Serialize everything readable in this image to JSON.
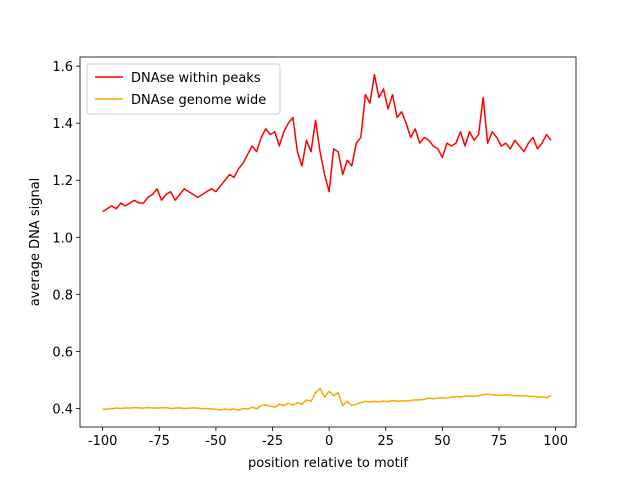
{
  "chart_data": {
    "type": "line",
    "xlabel": "position relative to motif",
    "ylabel": "average DNA signal",
    "x": [
      -100,
      -98,
      -96,
      -94,
      -92,
      -90,
      -88,
      -86,
      -84,
      -82,
      -80,
      -78,
      -76,
      -74,
      -72,
      -70,
      -68,
      -66,
      -64,
      -62,
      -60,
      -58,
      -56,
      -54,
      -52,
      -50,
      -48,
      -46,
      -44,
      -42,
      -40,
      -38,
      -36,
      -34,
      -32,
      -30,
      -28,
      -26,
      -24,
      -22,
      -20,
      -18,
      -16,
      -14,
      -12,
      -10,
      -8,
      -6,
      -4,
      -2,
      0,
      2,
      4,
      6,
      8,
      10,
      12,
      14,
      16,
      18,
      20,
      22,
      24,
      26,
      28,
      30,
      32,
      34,
      36,
      38,
      40,
      42,
      44,
      46,
      48,
      50,
      52,
      54,
      56,
      58,
      60,
      62,
      64,
      66,
      68,
      70,
      72,
      74,
      76,
      78,
      80,
      82,
      84,
      86,
      88,
      90,
      92,
      94,
      96,
      98
    ],
    "series": [
      {
        "name": "DNAse within peaks",
        "color": "#ff0000",
        "values": [
          1.09,
          1.1,
          1.11,
          1.1,
          1.12,
          1.11,
          1.12,
          1.13,
          1.12,
          1.12,
          1.14,
          1.15,
          1.17,
          1.13,
          1.15,
          1.16,
          1.13,
          1.15,
          1.17,
          1.16,
          1.15,
          1.14,
          1.15,
          1.16,
          1.17,
          1.16,
          1.18,
          1.2,
          1.22,
          1.21,
          1.24,
          1.26,
          1.29,
          1.32,
          1.3,
          1.35,
          1.38,
          1.36,
          1.37,
          1.32,
          1.37,
          1.4,
          1.42,
          1.3,
          1.25,
          1.34,
          1.3,
          1.41,
          1.3,
          1.22,
          1.16,
          1.31,
          1.3,
          1.22,
          1.27,
          1.25,
          1.33,
          1.35,
          1.5,
          1.47,
          1.57,
          1.49,
          1.52,
          1.45,
          1.5,
          1.42,
          1.44,
          1.4,
          1.35,
          1.38,
          1.33,
          1.35,
          1.34,
          1.32,
          1.31,
          1.28,
          1.33,
          1.32,
          1.33,
          1.37,
          1.32,
          1.37,
          1.34,
          1.36,
          1.49,
          1.33,
          1.37,
          1.35,
          1.32,
          1.33,
          1.31,
          1.34,
          1.32,
          1.3,
          1.33,
          1.35,
          1.31,
          1.33,
          1.36,
          1.34
        ]
      },
      {
        "name": "DNAse genome wide",
        "color": "#ffa500",
        "values": [
          0.397,
          0.398,
          0.399,
          0.401,
          0.4,
          0.402,
          0.401,
          0.403,
          0.402,
          0.401,
          0.403,
          0.402,
          0.401,
          0.402,
          0.403,
          0.4,
          0.401,
          0.402,
          0.4,
          0.401,
          0.402,
          0.401,
          0.399,
          0.4,
          0.398,
          0.397,
          0.395,
          0.398,
          0.396,
          0.398,
          0.394,
          0.4,
          0.398,
          0.404,
          0.399,
          0.41,
          0.412,
          0.408,
          0.405,
          0.415,
          0.41,
          0.418,
          0.412,
          0.42,
          0.415,
          0.43,
          0.425,
          0.455,
          0.47,
          0.44,
          0.46,
          0.445,
          0.455,
          0.41,
          0.425,
          0.41,
          0.415,
          0.42,
          0.425,
          0.422,
          0.425,
          0.423,
          0.426,
          0.424,
          0.428,
          0.425,
          0.427,
          0.426,
          0.428,
          0.43,
          0.43,
          0.432,
          0.436,
          0.434,
          0.436,
          0.438,
          0.436,
          0.44,
          0.442,
          0.44,
          0.443,
          0.444,
          0.442,
          0.445,
          0.448,
          0.45,
          0.448,
          0.447,
          0.446,
          0.448,
          0.446,
          0.445,
          0.444,
          0.445,
          0.443,
          0.442,
          0.441,
          0.44,
          0.438,
          0.445
        ]
      }
    ],
    "xlim": [
      -110,
      109
    ],
    "ylim": [
      0.335,
      1.632
    ],
    "xticks": [
      -100,
      -75,
      -50,
      -25,
      0,
      25,
      50,
      75,
      100
    ],
    "yticks": [
      0.4,
      0.6,
      0.8,
      {
        "value": 1.0,
        "label": "1.0"
      },
      1.2,
      1.4,
      1.6
    ],
    "legend": "upper left",
    "grid": false
  }
}
